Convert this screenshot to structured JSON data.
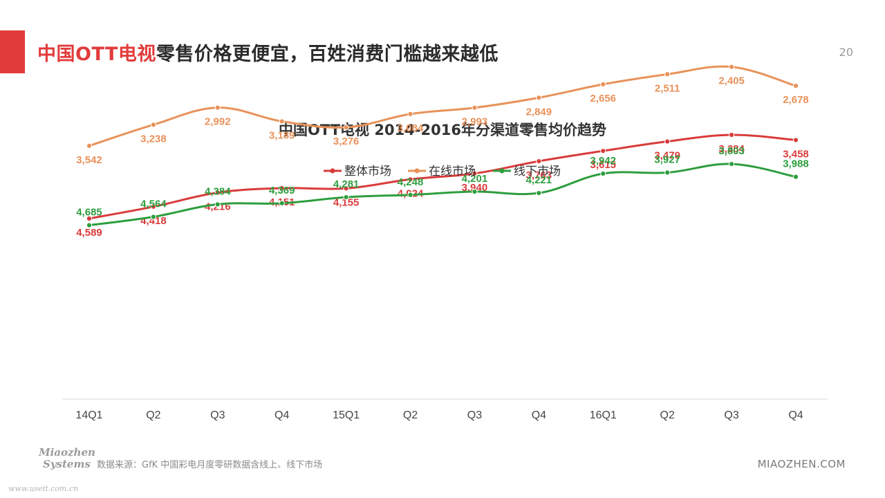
{
  "header": {
    "title_highlight": "中国OTT电视",
    "title_rest": "零售价格更便宜，百姓消费门槛越来越低",
    "page_number": "20",
    "accent_color": "#e23b3b"
  },
  "chart_data": {
    "type": "line",
    "title": "中国OTT电视 2014-2016年分渠道零售均价趋势",
    "categories": [
      "14Q1",
      "Q2",
      "Q3",
      "Q4",
      "15Q1",
      "Q2",
      "Q3",
      "Q4",
      "16Q1",
      "Q2",
      "Q3",
      "Q4"
    ],
    "series": [
      {
        "name": "整体市场",
        "color": "#d93b3b",
        "values": [
          4589,
          4418,
          4216,
          4151,
          4155,
          4024,
          3940,
          3763,
          3615,
          3479,
          3384,
          3458
        ]
      },
      {
        "name": "在线市场",
        "color": "#e8925a",
        "values": [
          3542,
          3238,
          2992,
          3189,
          3276,
          3084,
          2993,
          2849,
          2656,
          2511,
          2405,
          2678
        ]
      },
      {
        "name": "线下市场",
        "color": "#2e9e3e",
        "values": [
          4685,
          4564,
          4384,
          4369,
          4281,
          4248,
          4201,
          4221,
          3942,
          3927,
          3803,
          3988
        ]
      }
    ],
    "legend": "top-center",
    "smooth": true,
    "grid": false
  },
  "footer": {
    "source": "数据来源：GfK 中国彩电月度零研数据含线上、线下市场",
    "brand": "MIAOZHEN.COM",
    "logo_line1": "Miaozhen",
    "logo_line2": "Systems",
    "watermark": "www.useit.com.cn"
  }
}
